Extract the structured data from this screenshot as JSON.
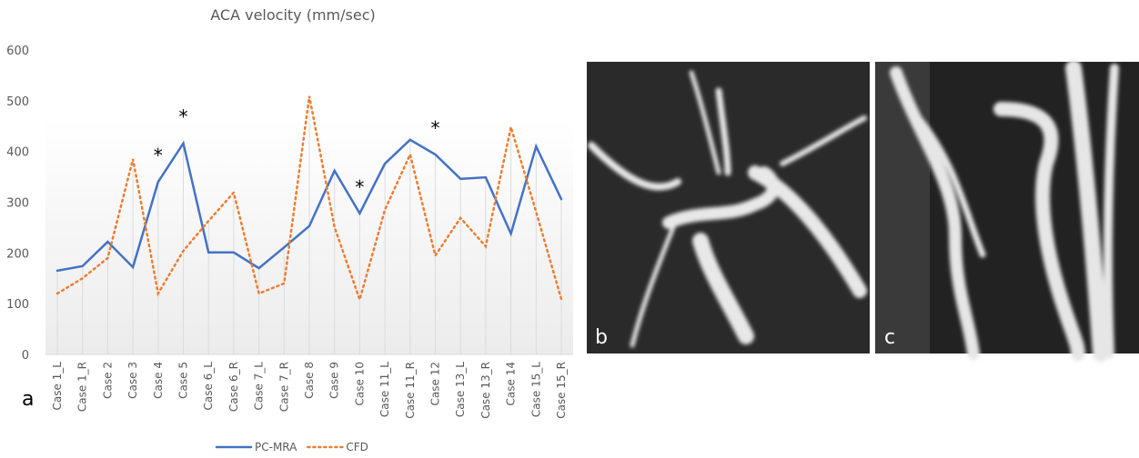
{
  "chart_data": {
    "type": "line",
    "title": "ACA velocity (mm/sec)",
    "panel_label": "a",
    "categories": [
      "Case 1_L",
      "Case 1_R",
      "Case 2",
      "Case 3",
      "Case 4",
      "Case 5",
      "Case 6_L",
      "Case 6_R",
      "Case 7_L",
      "Case 7_R",
      "Case 8",
      "Case 9",
      "Case 10",
      "Case 11_L",
      "Case 11_R",
      "Case 12",
      "Case 13_L",
      "Case 13_R",
      "Case 14",
      "Case 15_L",
      "Case 15_R"
    ],
    "series": [
      {
        "name": "PC-MRA",
        "color": "#4472c4",
        "dash": "solid",
        "values": [
          165,
          174,
          222,
          172,
          340,
          416,
          201,
          201,
          170,
          211,
          253,
          362,
          278,
          376,
          423,
          394,
          346,
          349,
          238,
          410,
          306
        ]
      },
      {
        "name": "CFD",
        "color": "#ed7d31",
        "dash": "dotted",
        "values": [
          120,
          150,
          190,
          385,
          120,
          204,
          263,
          319,
          120,
          140,
          509,
          251,
          108,
          285,
          394,
          195,
          269,
          213,
          448,
          281,
          109
        ]
      }
    ],
    "ylim": [
      0,
      600
    ],
    "yticks": [
      0,
      100,
      200,
      300,
      400,
      500,
      600
    ],
    "grid": false,
    "annotations": [
      {
        "text": "*",
        "category": 4
      },
      {
        "text": "*",
        "category": 5
      },
      {
        "text": "*",
        "category": 12
      },
      {
        "text": "*",
        "category": 15
      }
    ],
    "legend": "bottom"
  },
  "images": [
    {
      "label": "b"
    },
    {
      "label": "c"
    }
  ]
}
